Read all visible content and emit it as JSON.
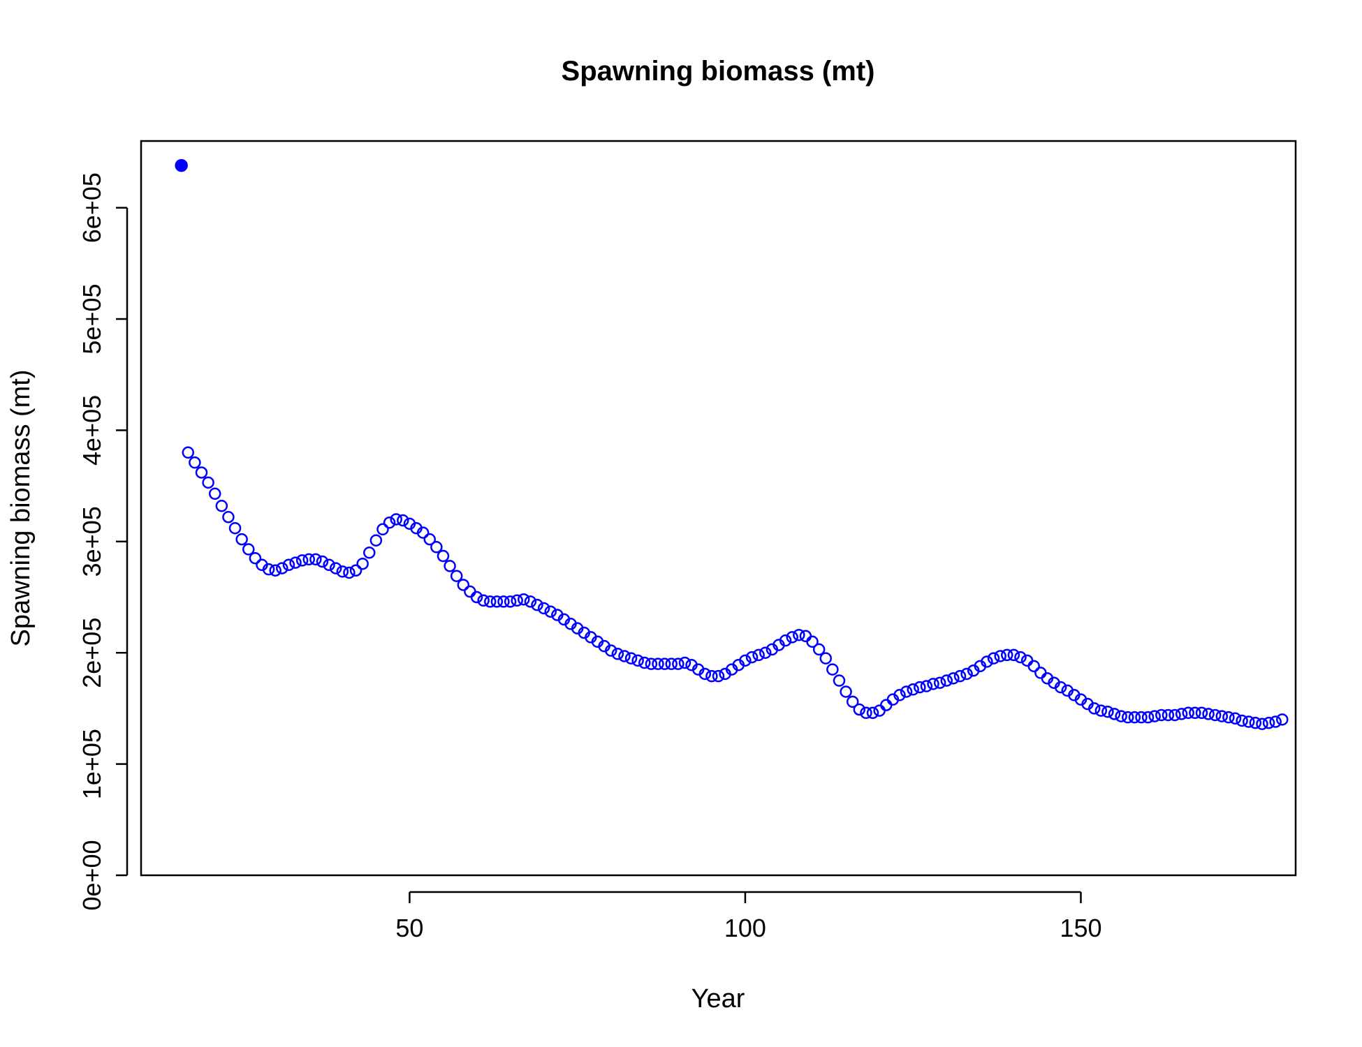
{
  "chart_data": {
    "type": "scatter",
    "title": "Spawning biomass (mt)",
    "xlabel": "Year",
    "ylabel": "Spawning biomass (mt)",
    "xlim": [
      10,
      182
    ],
    "ylim": [
      0,
      660000
    ],
    "x_ticks": [
      50,
      100,
      150
    ],
    "x_tick_labels": [
      "50",
      "100",
      "150"
    ],
    "y_ticks": [
      0,
      100000,
      200000,
      300000,
      400000,
      500000,
      600000
    ],
    "y_tick_labels": [
      "0e+00",
      "1e+05",
      "2e+05",
      "3e+05",
      "4e+05",
      "5e+05",
      "6e+05"
    ],
    "grid": false,
    "legend": "none",
    "colors": {
      "series": "#0000ff"
    },
    "series": [
      {
        "marker": "filled-circle",
        "points": [
          [
            16,
            638000
          ]
        ]
      },
      {
        "marker": "open-circle",
        "points": [
          [
            17,
            380000
          ],
          [
            18,
            371000
          ],
          [
            19,
            362000
          ],
          [
            20,
            353000
          ],
          [
            21,
            343000
          ],
          [
            22,
            332000
          ],
          [
            23,
            322000
          ],
          [
            24,
            312000
          ],
          [
            25,
            302000
          ],
          [
            26,
            293000
          ],
          [
            27,
            285000
          ],
          [
            28,
            279000
          ],
          [
            29,
            275000
          ],
          [
            30,
            274000
          ],
          [
            31,
            276000
          ],
          [
            32,
            279000
          ],
          [
            33,
            281000
          ],
          [
            34,
            283000
          ],
          [
            35,
            284000
          ],
          [
            36,
            284000
          ],
          [
            37,
            282000
          ],
          [
            38,
            279000
          ],
          [
            39,
            276000
          ],
          [
            40,
            273000
          ],
          [
            41,
            272000
          ],
          [
            42,
            274000
          ],
          [
            43,
            280000
          ],
          [
            44,
            290000
          ],
          [
            45,
            301000
          ],
          [
            46,
            311000
          ],
          [
            47,
            317000
          ],
          [
            48,
            320000
          ],
          [
            49,
            319000
          ],
          [
            50,
            316000
          ],
          [
            51,
            312000
          ],
          [
            52,
            308000
          ],
          [
            53,
            302000
          ],
          [
            54,
            295000
          ],
          [
            55,
            287000
          ],
          [
            56,
            278000
          ],
          [
            57,
            269000
          ],
          [
            58,
            261000
          ],
          [
            59,
            255000
          ],
          [
            60,
            250000
          ],
          [
            61,
            247000
          ],
          [
            62,
            246000
          ],
          [
            63,
            246000
          ],
          [
            64,
            246000
          ],
          [
            65,
            246000
          ],
          [
            66,
            247000
          ],
          [
            67,
            248000
          ],
          [
            68,
            246000
          ],
          [
            69,
            243000
          ],
          [
            70,
            240000
          ],
          [
            71,
            237000
          ],
          [
            72,
            234000
          ],
          [
            73,
            230000
          ],
          [
            74,
            226000
          ],
          [
            75,
            222000
          ],
          [
            76,
            218000
          ],
          [
            77,
            214000
          ],
          [
            78,
            210000
          ],
          [
            79,
            206000
          ],
          [
            80,
            202000
          ],
          [
            81,
            199000
          ],
          [
            82,
            197000
          ],
          [
            83,
            195000
          ],
          [
            84,
            193000
          ],
          [
            85,
            191000
          ],
          [
            86,
            190000
          ],
          [
            87,
            190000
          ],
          [
            88,
            190000
          ],
          [
            89,
            190000
          ],
          [
            90,
            190000
          ],
          [
            91,
            191000
          ],
          [
            92,
            189000
          ],
          [
            93,
            185000
          ],
          [
            94,
            181000
          ],
          [
            95,
            179000
          ],
          [
            96,
            179000
          ],
          [
            97,
            181000
          ],
          [
            98,
            185000
          ],
          [
            99,
            189000
          ],
          [
            100,
            193000
          ],
          [
            101,
            196000
          ],
          [
            102,
            198000
          ],
          [
            103,
            200000
          ],
          [
            104,
            203000
          ],
          [
            105,
            207000
          ],
          [
            106,
            211000
          ],
          [
            107,
            214000
          ],
          [
            108,
            216000
          ],
          [
            109,
            215000
          ],
          [
            110,
            210000
          ],
          [
            111,
            203000
          ],
          [
            112,
            195000
          ],
          [
            113,
            185000
          ],
          [
            114,
            175000
          ],
          [
            115,
            165000
          ],
          [
            116,
            156000
          ],
          [
            117,
            149000
          ],
          [
            118,
            146000
          ],
          [
            119,
            146000
          ],
          [
            120,
            148000
          ],
          [
            121,
            153000
          ],
          [
            122,
            158000
          ],
          [
            123,
            162000
          ],
          [
            124,
            165000
          ],
          [
            125,
            167000
          ],
          [
            126,
            169000
          ],
          [
            127,
            170000
          ],
          [
            128,
            172000
          ],
          [
            129,
            173000
          ],
          [
            130,
            175000
          ],
          [
            131,
            177000
          ],
          [
            132,
            179000
          ],
          [
            133,
            181000
          ],
          [
            134,
            184000
          ],
          [
            135,
            188000
          ],
          [
            136,
            192000
          ],
          [
            137,
            195000
          ],
          [
            138,
            197000
          ],
          [
            139,
            198000
          ],
          [
            140,
            198000
          ],
          [
            141,
            196000
          ],
          [
            142,
            193000
          ],
          [
            143,
            188000
          ],
          [
            144,
            182000
          ],
          [
            145,
            177000
          ],
          [
            146,
            173000
          ],
          [
            147,
            169000
          ],
          [
            148,
            166000
          ],
          [
            149,
            162000
          ],
          [
            150,
            158000
          ],
          [
            151,
            154000
          ],
          [
            152,
            150000
          ],
          [
            153,
            148000
          ],
          [
            154,
            147000
          ],
          [
            155,
            145000
          ],
          [
            156,
            143000
          ],
          [
            157,
            142000
          ],
          [
            158,
            142000
          ],
          [
            159,
            142000
          ],
          [
            160,
            142000
          ],
          [
            161,
            143000
          ],
          [
            162,
            144000
          ],
          [
            163,
            144000
          ],
          [
            164,
            144000
          ],
          [
            165,
            145000
          ],
          [
            166,
            146000
          ],
          [
            167,
            146000
          ],
          [
            168,
            146000
          ],
          [
            169,
            145000
          ],
          [
            170,
            144000
          ],
          [
            171,
            143000
          ],
          [
            172,
            142000
          ],
          [
            173,
            141000
          ],
          [
            174,
            139000
          ],
          [
            175,
            138000
          ],
          [
            176,
            137000
          ],
          [
            177,
            136000
          ],
          [
            178,
            137000
          ],
          [
            179,
            138000
          ],
          [
            180,
            140000
          ]
        ]
      }
    ]
  }
}
